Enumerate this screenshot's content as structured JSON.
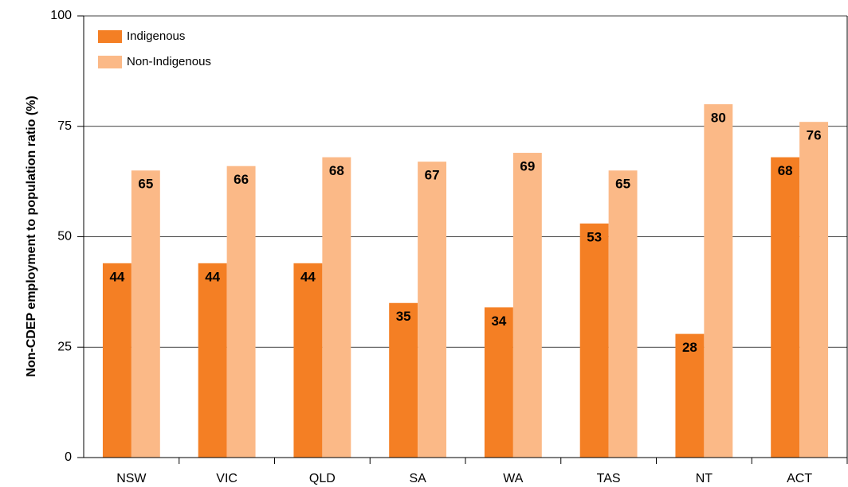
{
  "chart_data": {
    "type": "bar",
    "y_label": "Non-CDEP employment to population ratio (%)",
    "categories": [
      "NSW",
      "VIC",
      "QLD",
      "SA",
      "WA",
      "TAS",
      "NT",
      "ACT"
    ],
    "series": [
      {
        "name": "Indigenous",
        "color": "#f47f24",
        "values": [
          44,
          44,
          44,
          35,
          34,
          53,
          28,
          68
        ]
      },
      {
        "name": "Non-Indigenous",
        "color": "#fbb987",
        "values": [
          65,
          66,
          68,
          67,
          69,
          65,
          80,
          76
        ]
      }
    ],
    "ylim": [
      0,
      100
    ],
    "yticks": [
      0,
      25,
      50,
      75,
      100
    ],
    "grid": true,
    "legend": "top-left"
  }
}
